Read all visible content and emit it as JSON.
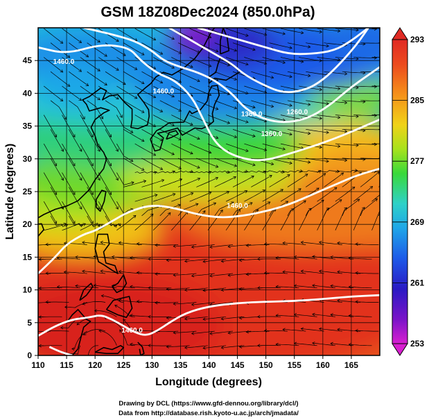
{
  "title": "GSM 18Z08Dec2024 (850.0hPa)",
  "x_label": "Longitude (degrees)",
  "y_label": "Latitude  (degrees)",
  "credit_line1": "Drawing by DCL (https://www.gfd-dennou.org/library/dcl/)",
  "credit_line2": "Data from http://database.rish.kyoto-u.ac.jp/arch/jmadata/",
  "chart_data": {
    "type": "heatmap",
    "description_fields": "temperature shading with streamlines and geopotential height contours",
    "xlim": [
      110,
      170
    ],
    "ylim": [
      0,
      50
    ],
    "x_ticks": [
      "110",
      "115",
      "120",
      "125",
      "130",
      "135",
      "140",
      "145",
      "150",
      "155",
      "160",
      "165"
    ],
    "y_ticks": [
      "0",
      "5",
      "10",
      "15",
      "20",
      "25",
      "30",
      "35",
      "40",
      "45"
    ],
    "colorbar": {
      "min": 253,
      "max": 293,
      "ticks": [
        "253",
        "261",
        "269",
        "277",
        "285",
        "293"
      ],
      "colors": [
        "#d81fd0",
        "#3a10c0",
        "#1d4fe6",
        "#1fa6e8",
        "#2ed1c8",
        "#3ad93a",
        "#a8e21d",
        "#f0d218",
        "#f5901a",
        "#ec4a1e",
        "#e02a24"
      ]
    },
    "contour_labels": [
      {
        "text": "1460.0",
        "lon": 114.5,
        "lat": 44.5
      },
      {
        "text": "1460.0",
        "lon": 132.0,
        "lat": 40.0
      },
      {
        "text": "1360.0",
        "lon": 147.5,
        "lat": 36.5
      },
      {
        "text": "1360.0",
        "lon": 151.0,
        "lat": 33.5
      },
      {
        "text": "1260.0",
        "lon": 155.5,
        "lat": 36.8
      },
      {
        "text": "1460.0",
        "lon": 145.0,
        "lat": 22.5
      },
      {
        "text": "1460.0",
        "lon": 126.5,
        "lat": 3.5
      }
    ]
  }
}
